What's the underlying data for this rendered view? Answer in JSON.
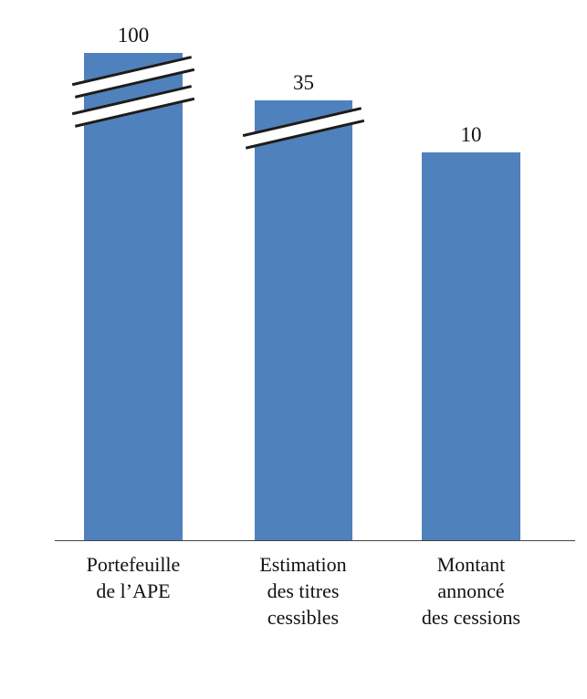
{
  "chart_data": {
    "type": "bar",
    "title": "",
    "xlabel": "",
    "ylabel": "",
    "categories": [
      {
        "lines": [
          "Portefeuille",
          "de l’APE"
        ]
      },
      {
        "lines": [
          "Estimation",
          "des titres",
          "cessibles"
        ]
      },
      {
        "lines": [
          "Montant",
          "annoncé",
          "des cessions"
        ]
      }
    ],
    "values": [
      100,
      35,
      10
    ],
    "bar_color": "#4f81bd",
    "grid": false,
    "legend": false,
    "axis_breaks_per_bar": [
      2,
      1,
      0
    ],
    "note_axis": "bars 1 and 2 are truncated with diagonal break marks; no numeric y-axis shown"
  }
}
